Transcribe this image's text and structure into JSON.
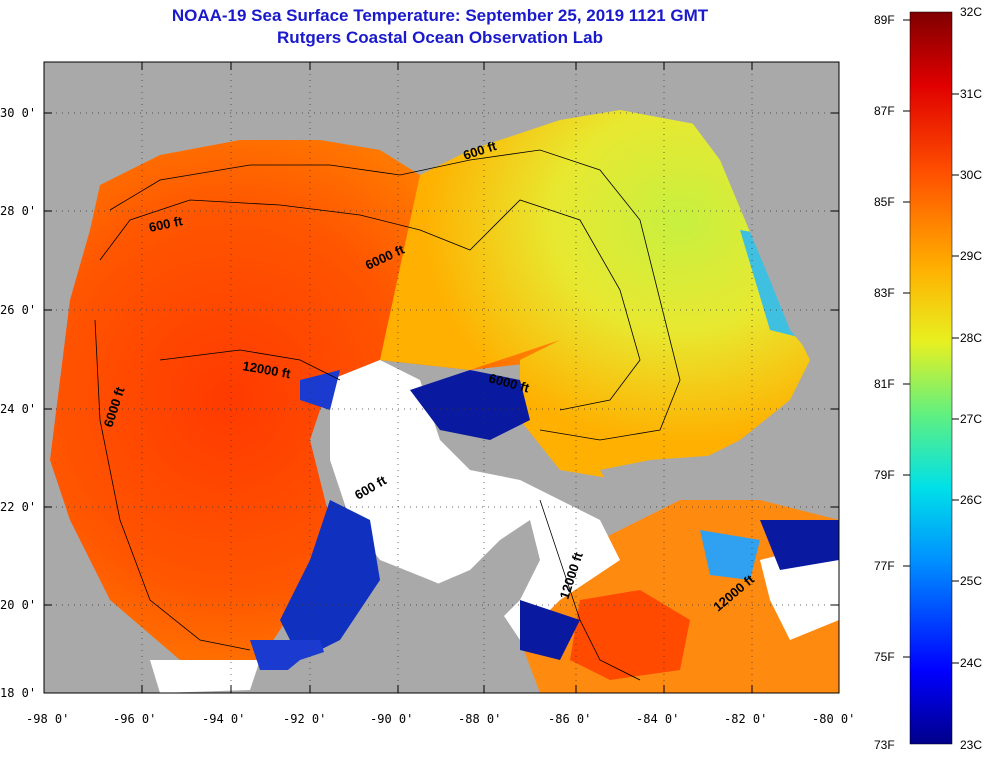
{
  "title": {
    "line1": "NOAA-19 Sea Surface Temperature:  September 25, 2019 1121 GMT",
    "line2": "Rutgers Coastal Ocean Observation Lab"
  },
  "axes": {
    "lat_labels": [
      "30 0'",
      "28 0'",
      "26 0'",
      "24 0'",
      "22 0'",
      "20 0'",
      "18 0'"
    ],
    "lon_labels": [
      "-98 0'",
      "-96 0'",
      "-94 0'",
      "-92 0'",
      "-90 0'",
      "-88 0'",
      "-86 0'",
      "-84 0'",
      "-82 0'",
      "-80 0'"
    ]
  },
  "contours": {
    "labels": [
      "600 ft",
      "600 ft",
      "6000 ft",
      "12000 ft",
      "6000 ft",
      "6000 ft",
      "600 ft",
      "12000 ft",
      "12000 ft"
    ]
  },
  "colorbar": {
    "f_labels": [
      "89F",
      "87F",
      "85F",
      "83F",
      "81F",
      "79F",
      "77F",
      "75F",
      "73F"
    ],
    "c_labels": [
      "32C",
      "31C",
      "30C",
      "29C",
      "28C",
      "27C",
      "26C",
      "25C",
      "24C",
      "23C"
    ]
  },
  "colors": {
    "land": "#a9a9a9",
    "cloud": "#ffffff",
    "title": "#1a1acc"
  }
}
